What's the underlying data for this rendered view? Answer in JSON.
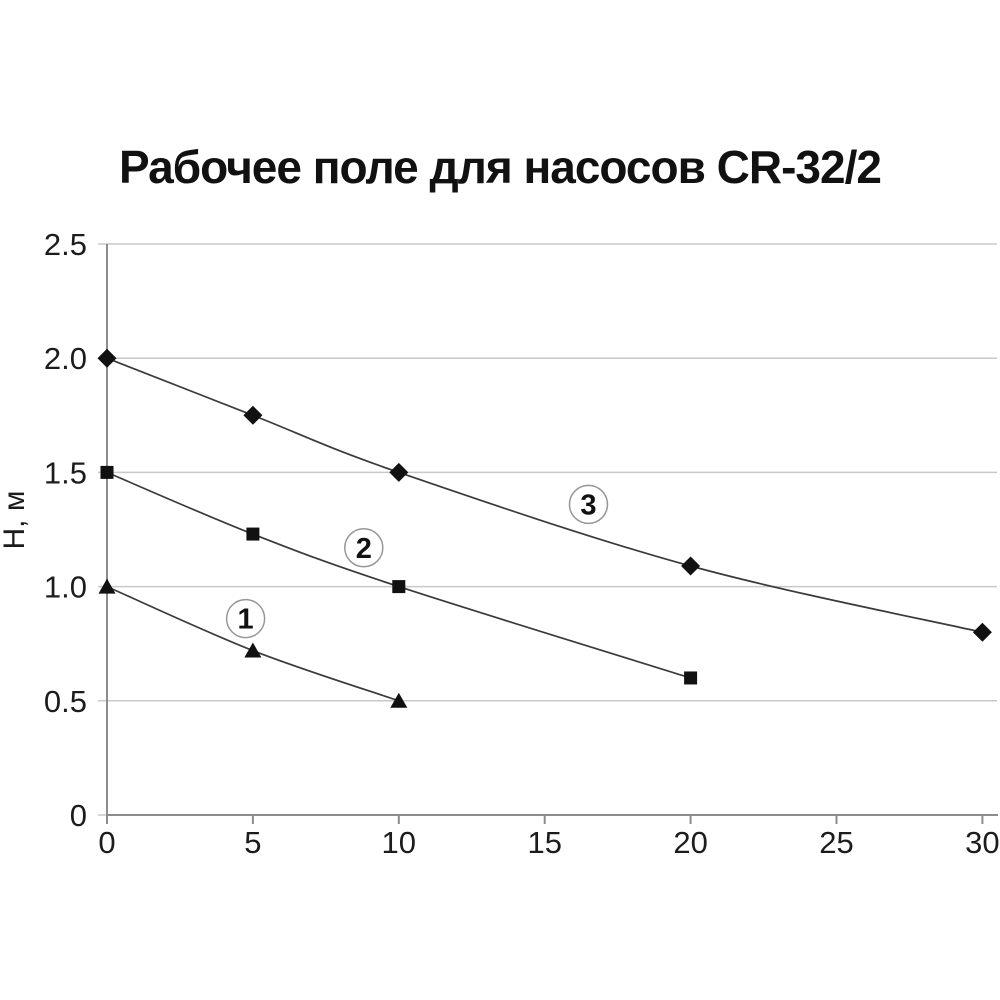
{
  "chart_data": {
    "type": "line",
    "title": "Рабочее поле для насосов CR-32/2",
    "xlabel": "",
    "ylabel": "Н, м",
    "xlim": [
      0,
      30.5
    ],
    "ylim": [
      0,
      2.5
    ],
    "x_ticks": [
      0,
      5,
      10,
      15,
      20,
      25,
      30
    ],
    "y_ticks": [
      0,
      0.5,
      1.0,
      1.5,
      2.0,
      2.5
    ],
    "y_tick_labels": [
      "0",
      "0.5",
      "1.0",
      "1.5",
      "2.0",
      "2.5"
    ],
    "grid": "horizontal",
    "legend": "none",
    "series": [
      {
        "name": "1",
        "marker": "triangle",
        "points": [
          [
            0,
            1.0
          ],
          [
            5,
            0.72
          ],
          [
            10,
            0.5
          ]
        ],
        "label_pos": [
          4.75,
          0.86
        ]
      },
      {
        "name": "2",
        "marker": "square",
        "points": [
          [
            0,
            1.5
          ],
          [
            5,
            1.23
          ],
          [
            10,
            1.0
          ],
          [
            20,
            0.6
          ]
        ],
        "label_pos": [
          8.8,
          1.17
        ]
      },
      {
        "name": "3",
        "marker": "diamond",
        "points": [
          [
            0,
            2.0
          ],
          [
            5,
            1.75
          ],
          [
            10,
            1.5
          ],
          [
            20,
            1.09
          ],
          [
            30,
            0.8
          ]
        ],
        "label_pos": [
          16.5,
          1.36
        ]
      }
    ],
    "colors": {
      "line": "#3a3a3a",
      "marker": "#111111",
      "grid": "#c8c8c8",
      "axis": "#8c8c8c",
      "text": "#1c1c1c",
      "label_circle_stroke": "#979797",
      "background": "#ffffff"
    }
  }
}
